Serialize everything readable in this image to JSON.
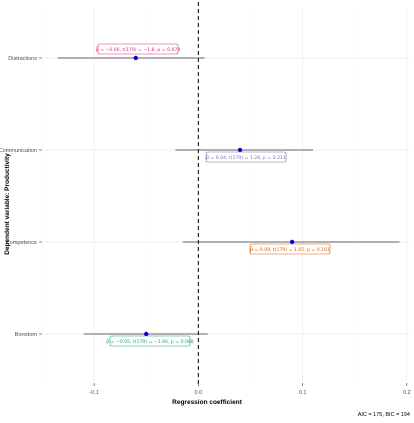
{
  "chart_data": {
    "type": "forest",
    "title": "",
    "xlabel": "Regression coefficient",
    "ylabel": "Dependent variable: Productivity",
    "xlim": [
      -0.15,
      0.205
    ],
    "x_ticks": [
      -0.1,
      0.0,
      0.1,
      0.2
    ],
    "x_tick_labels": [
      "-0.1",
      "0.0",
      "0.1",
      "0.2"
    ],
    "reference_line": 0,
    "grid": true,
    "categories": [
      "Distractions",
      "Communication",
      "Competence",
      "Boredom"
    ],
    "estimates": [
      -0.06,
      0.04,
      0.09,
      -0.05
    ],
    "ci_low": [
      -0.135,
      -0.022,
      -0.015,
      -0.11
    ],
    "ci_high": [
      0.006,
      0.11,
      0.193,
      0.009
    ],
    "point_color": "#0000cc",
    "annotations": [
      {
        "category": "Distractions",
        "text": "β̂ = −0.06,   t(179) = −1.8,   p = 0.074",
        "color": "#e7298a"
      },
      {
        "category": "Communication",
        "text": "β̂ = 0.04,   t(179) = 1.26,   p = 0.211",
        "color": "#7570b3"
      },
      {
        "category": "Competence",
        "text": "β̂ = 0.09,   t(179) = 1.65,   p = 0.101",
        "color": "#d95f02"
      },
      {
        "category": "Boredom",
        "text": "β̂ = −0.05,   t(179) = −1.66,   p = 0.098",
        "color": "#1b9e77"
      }
    ],
    "caption": "AIC = 175, BIC = 194"
  }
}
